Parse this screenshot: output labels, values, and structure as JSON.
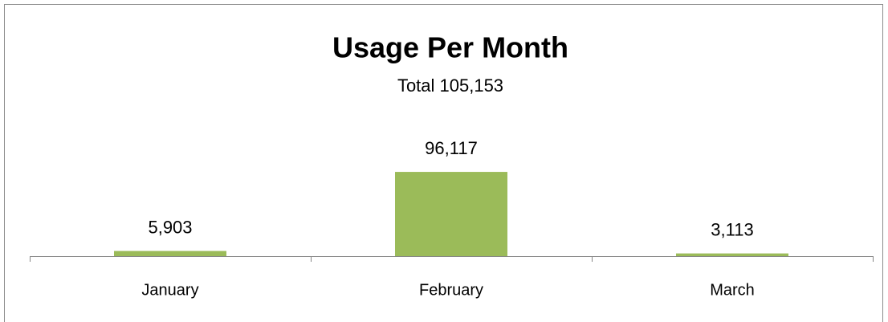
{
  "chart_data": {
    "type": "bar",
    "title": "Usage Per Month",
    "subtitle": "Total 105,153",
    "categories": [
      "January",
      "February",
      "March"
    ],
    "values": [
      5903,
      96117,
      3113
    ],
    "value_labels": [
      "5,903",
      "96,117",
      "3,113"
    ],
    "color": "#9bbb59",
    "ylim": [
      0,
      120000
    ]
  }
}
